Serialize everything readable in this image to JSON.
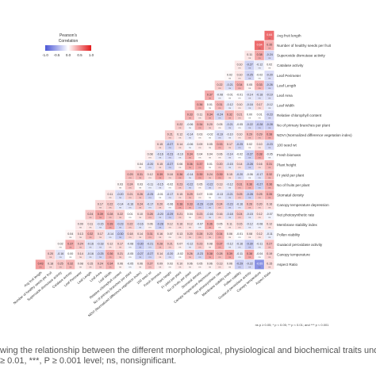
{
  "chart_data": {
    "type": "heatmap",
    "variables": [
      "Avg fruit length",
      "Number of healthy seeds per fruit",
      "Superoxide dismutase activity",
      "Catalase activity",
      "Leaf Perimeter",
      "Leaf Length",
      "Leaf Area",
      "Leaf Width",
      "Relative chlorophyll content",
      "No of primary branches per plant",
      "NDVI (Normalized difference vegetation index)",
      "100 seed wt",
      "Fresh biomass",
      "Plant height",
      "Fr yield per plant",
      "No of fruits per plant",
      "Stomatal density",
      "Canopy temperature depression",
      "Net photosynthetic rate",
      "Membrane stability index",
      "Pollen viability",
      "Guaiacol peroxidase activity",
      "Canopy temperature",
      "Aspect Ratio"
    ],
    "diagonal_values": [
      0.64,
      0.11,
      0.1,
      0.02,
      0.22,
      0.37,
      0.36,
      0.33,
      0.22,
      0.21,
      0.15,
      0.08,
      0.04,
      0.29,
      0.03,
      0.11,
      0.17,
      0.24,
      0.09,
      0.04,
      0.02,
      0.2,
      0.27
    ],
    "lower_row_values": [
      0.43,
      0.18,
      0.25,
      0.32,
      0.08,
      0.15,
      0.24,
      0.34,
      0.06,
      -0.05,
      0.06,
      0.27,
      0.09,
      0.03,
      0.1,
      0.06,
      0.05,
      0.06,
      0.13,
      0.06,
      -0.29,
      -0.22,
      -0.65
    ],
    "legend": {
      "title": "Pearson's\nCorrelation",
      "ticks": [
        "-1.0",
        "-0.5",
        "0.0",
        "0.5",
        "1.0"
      ],
      "range": [
        -1,
        1
      ],
      "colors": {
        "low": "#4b57d6",
        "mid": "#ffffff",
        "high": "#e31a1c"
      }
    },
    "cell_label": "ns",
    "significance_note": "ns p ≥ 0.05; * p < 0.05; ** p < 0.01; and *** p < 0.001"
  },
  "caption": {
    "line1": "wing the relationship between the different morphological, physiological and biochemical traits under heat s",
    "line2": "≥ 0.01, ***, P ≥ 0.001 level; ns, nonsignificant."
  }
}
